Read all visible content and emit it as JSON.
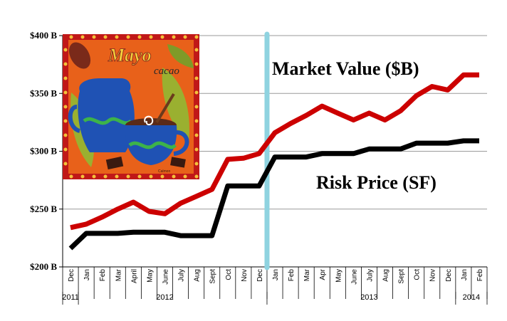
{
  "chart_data": {
    "type": "line",
    "title": "",
    "xlabel": "",
    "ylabel": "",
    "ylim": [
      200,
      400
    ],
    "yticks": [
      200,
      250,
      300,
      350,
      400
    ],
    "ytick_labels": [
      "$200 B",
      "$250 B",
      "$300 B",
      "$350 B",
      "$400 B"
    ],
    "grid": true,
    "categories": [
      "Dec",
      "Jan",
      "Feb",
      "Mar",
      "April",
      "May",
      "June",
      "July",
      "Aug",
      "Sept",
      "Oct",
      "Nov",
      "Dec",
      "Jan",
      "Feb",
      "Mar",
      "Apr",
      "May",
      "June",
      "July",
      "Aug",
      "Sept",
      "Oct",
      "Nov",
      "Dec",
      "Jan",
      "Feb"
    ],
    "year_labels": [
      {
        "label": "2011",
        "category_index": 0
      },
      {
        "label": "2012",
        "category_index": 6
      },
      {
        "label": "2013",
        "category_index": 19
      },
      {
        "label": "2014",
        "category_index": 25.5
      }
    ],
    "series": [
      {
        "key": "market_value",
        "color": "#cc0000",
        "values": [
          234,
          237,
          243,
          250,
          256,
          248,
          246,
          255,
          261,
          267,
          293,
          294,
          298,
          316,
          324,
          331,
          339,
          333,
          327,
          333,
          327,
          335,
          348,
          356,
          353,
          366,
          366
        ]
      },
      {
        "key": "risk_price",
        "color": "#000000",
        "values": [
          216,
          229,
          229,
          229,
          230,
          230,
          230,
          227,
          227,
          227,
          270,
          270,
          270,
          295,
          295,
          295,
          298,
          298,
          298,
          302,
          302,
          302,
          307,
          307,
          307,
          309,
          309
        ]
      }
    ],
    "annotations": [
      {
        "text": "Market Value ($B)",
        "series": "market_value"
      },
      {
        "text": "Risk Price (SF)",
        "series": "risk_price"
      }
    ],
    "divider": {
      "after_category_index": 12,
      "color": "#8fd3e0"
    },
    "inset_image": {
      "title_text": "Mayo",
      "subtitle_text": "cacao",
      "signature_text": "Calmon"
    }
  }
}
